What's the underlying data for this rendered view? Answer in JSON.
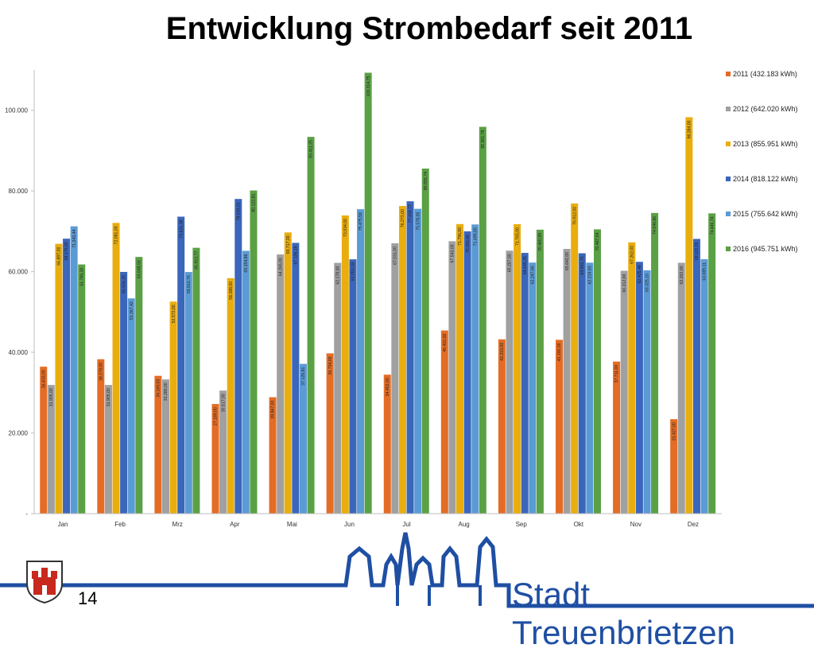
{
  "slide": {
    "title": "Entwicklung Strombedarf seit 2011",
    "page_number": "14",
    "brand": "Stadt Treuenbrietzen"
  },
  "colors": {
    "brand_blue": "#1f4fa3",
    "series": [
      "#e46c25",
      "#a0a0a0",
      "#e9ad0e",
      "#3a66bb",
      "#5b9bd5",
      "#5aa045"
    ]
  },
  "chart_data": {
    "type": "bar",
    "title": "",
    "xlabel": "",
    "ylabel": "",
    "ylim": [
      0,
      110000
    ],
    "yticks": [
      0,
      20000,
      40000,
      60000,
      80000,
      100000
    ],
    "ytick_labels": [
      "-",
      "20.000",
      "40.000",
      "60.000",
      "80.000",
      "100.000"
    ],
    "grid": false,
    "legend_position": "right",
    "categories": [
      "Jan",
      "Feb",
      "Mrz",
      "Apr",
      "Mai",
      "Jun",
      "Jul",
      "Aug",
      "Sep",
      "Okt",
      "Nov",
      "Dez"
    ],
    "series": [
      {
        "name": "2011 (432.183 kWh)",
        "values": [
          36433,
          38278,
          34169,
          27189,
          28867,
          39734,
          34452,
          45410,
          43219,
          43100,
          37711,
          23427
        ],
        "labels": [
          "36.433,00",
          "38.278,00",
          "34.169,00",
          "27.189,00",
          "28.867,00",
          "39.734,00",
          "34.452,00",
          "45.410,00",
          "43.219,00",
          "43.100,00",
          "37.711,00",
          "23.427,00"
        ]
      },
      {
        "name": "2012 (642.020 kWh)",
        "values": [
          31905,
          31905,
          33280,
          30517,
          64265,
          62178,
          67031,
          67543,
          65207,
          65642,
          60212,
          62202
        ],
        "labels": [
          "31.905,00",
          "31.905,00",
          "33.280,00",
          "30.517,00",
          "64.265,00",
          "62.178,00",
          "67.031,00",
          "67.543,00",
          "65.207,00",
          "65.642,00",
          "60.212,00",
          "62.202,00"
        ]
      },
      {
        "name": "2013 (855.951 kWh)",
        "values": [
          66897,
          72081,
          52572,
          58388,
          69717,
          73934,
          76273,
          71796,
          71765,
          76912,
          67262,
          98284
        ],
        "labels": [
          "66.897,00",
          "72.081,00",
          "52.572,00",
          "58.388,00",
          "69.717,00",
          "73.934,00",
          "76.273,00",
          "71.796,00",
          "71.765,00",
          "76.912,00",
          "67.262,00",
          "98.284,00"
        ]
      },
      {
        "name": "2014 (818.122 kWh)",
        "values": [
          68176,
          59934.25,
          73631.38,
          78019.01,
          67136.19,
          63053.18,
          77439.77,
          70000,
          64645.35,
          64555.7,
          62435.48,
          68115.93
        ],
        "labels": [
          "68.176,00",
          "59.934,25",
          "73.631,38",
          "78.019,01",
          "67.136,19",
          "63.053,18",
          "77.439,77",
          "70.000,00",
          "64.645,35",
          "64.555,70",
          "62.435,48",
          "68.115,93"
        ]
      },
      {
        "name": "2015 (755.642 kWh)",
        "values": [
          71243.44,
          53367.42,
          59912.76,
          65154.86,
          37129.81,
          75475.59,
          75578.05,
          71699,
          62247.66,
          62219.93,
          60325.1,
          63089.11
        ],
        "labels": [
          "71.243,44",
          "53.367,42",
          "59.912,76",
          "65.154,86",
          "37.129,81",
          "75.475,59",
          "75.578,05",
          "71.699,00",
          "62.247,66",
          "62.219,93",
          "60.325,10",
          "63.089,11"
        ]
      },
      {
        "name": "2016 (945.751 kWh)",
        "values": [
          61786.3,
          63648.56,
          65913.77,
          80122.81,
          93411.25,
          109314.75,
          85555.74,
          95901.78,
          70400.99,
          70487.54,
          74549.86,
          74446.74
        ],
        "labels": [
          "61.786,30",
          "63.648,56",
          "65.913,77",
          "80.122,81",
          "93.411,25",
          "109.314,75",
          "85.555,74",
          "95.901,78",
          "70.400,99",
          "70.487,54",
          "74.549,86",
          "74.446,74"
        ]
      }
    ]
  }
}
